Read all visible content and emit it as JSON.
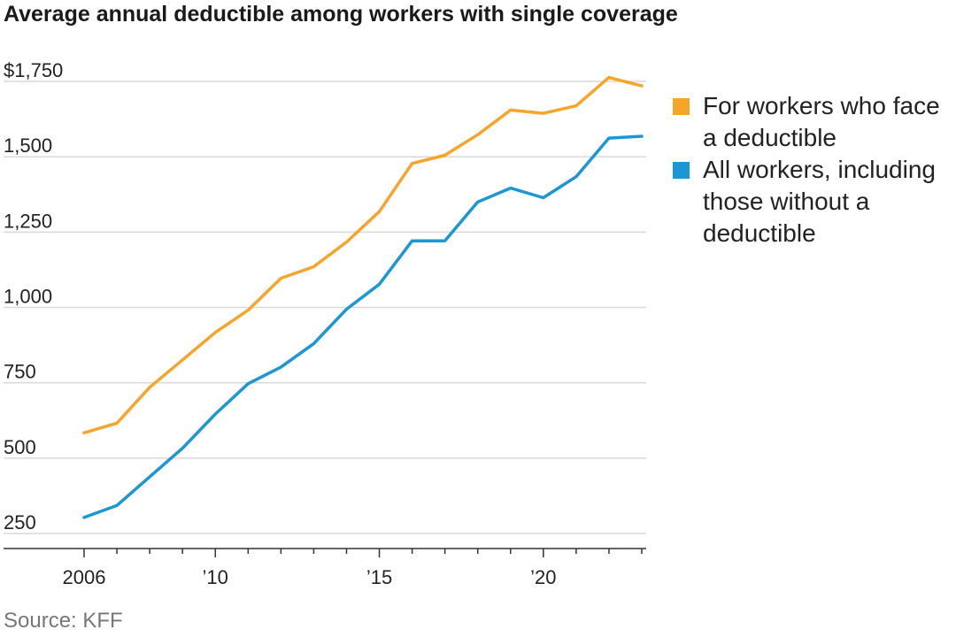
{
  "title": "Average annual deductible among workers with single coverage",
  "source": "Source: KFF",
  "colors": {
    "face_deductible": "#f5a52a",
    "all_workers": "#1b97d4",
    "grid": "#d9d9d9",
    "axis": "#333333"
  },
  "chart_data": {
    "type": "line",
    "title": "Average annual deductible among workers with single coverage",
    "x": [
      2006,
      2007,
      2008,
      2009,
      2010,
      2011,
      2012,
      2013,
      2014,
      2015,
      2016,
      2017,
      2018,
      2019,
      2020,
      2021,
      2022,
      2023
    ],
    "x_ticks": [
      2006,
      2010,
      2015,
      2020
    ],
    "x_tick_labels": [
      "2006",
      "’10",
      "’15",
      "’20"
    ],
    "ylim": [
      200,
      1800
    ],
    "y_ticks": [
      250,
      500,
      750,
      1000,
      1250,
      1500,
      1750
    ],
    "y_tick_labels": [
      "250",
      "500",
      "750",
      "1,000",
      "1,250",
      "1,500",
      "$1,750"
    ],
    "series": [
      {
        "name": "For workers who face a deductible",
        "values": [
          584,
          616,
          735,
          826,
          917,
          991,
          1097,
          1135,
          1217,
          1318,
          1478,
          1505,
          1573,
          1655,
          1644,
          1669,
          1763,
          1735
        ]
      },
      {
        "name": "All workers, including those without a deductible",
        "values": [
          303,
          343,
          438,
          533,
          646,
          747,
          802,
          880,
          994,
          1077,
          1221,
          1221,
          1350,
          1396,
          1364,
          1434,
          1562,
          1568
        ]
      }
    ],
    "grid": true,
    "legend_position": "right"
  }
}
